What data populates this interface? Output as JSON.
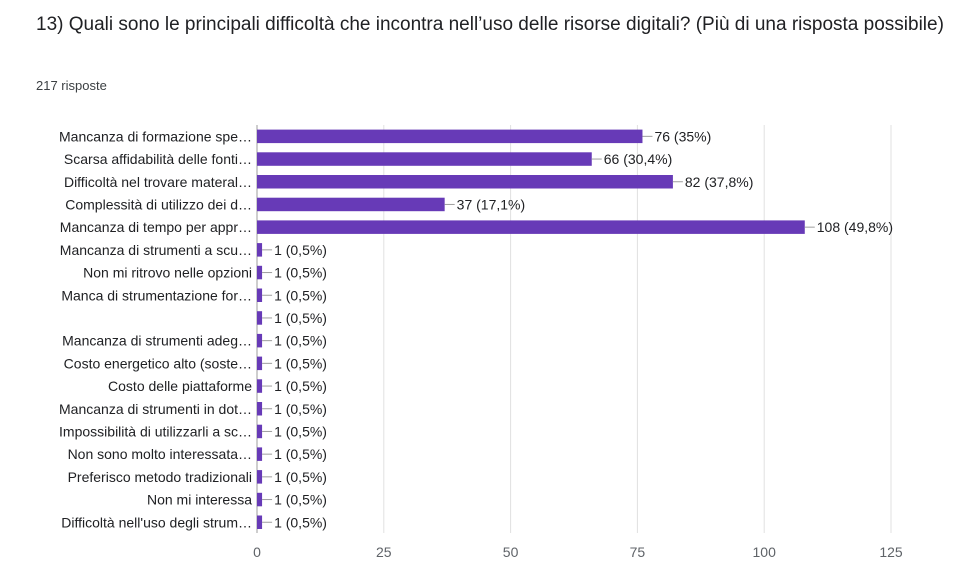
{
  "question": "13) Quali sono le principali difficoltà che incontra nell’uso delle risorse digitali?  (Più di una risposta possibile)",
  "responses": "217 risposte",
  "colors": {
    "bar": "#673ab7",
    "grid": "#e0e0e0",
    "axis": "#9e9e9e",
    "leader": "#9e9e9e"
  },
  "chart_data": {
    "type": "bar",
    "orientation": "horizontal",
    "categories": [
      "Mancanza di formazione spe…",
      "Scarsa affidabilità delle fonti…",
      "Difficoltà nel trovare materal…",
      "Complessità di utilizzo dei d…",
      "Mancanza di tempo per appr…",
      "Mancanza di strumenti a scu…",
      "Non mi ritrovo nelle opzioni",
      "Manca di strumentazione for…",
      "",
      "Mancanza di strumenti adeg…",
      "Costo energetico alto (soste…",
      "Costo delle piattaforme",
      "Mancanza di strumenti in dot…",
      "Impossibilità di utilizzarli a sc…",
      "Non sono molto interessata…",
      "Preferisco metodo tradizionali",
      "Non mi interessa",
      "Difficoltà nell'uso degli strum…"
    ],
    "values": [
      76,
      66,
      82,
      37,
      108,
      1,
      1,
      1,
      1,
      1,
      1,
      1,
      1,
      1,
      1,
      1,
      1,
      1
    ],
    "value_labels": [
      "76 (35%)",
      "66 (30,4%)",
      "82 (37,8%)",
      "37 (17,1%)",
      "108 (49,8%)",
      "1 (0,5%)",
      "1 (0,5%)",
      "1 (0,5%)",
      "1 (0,5%)",
      "1 (0,5%)",
      "1 (0,5%)",
      "1 (0,5%)",
      "1 (0,5%)",
      "1 (0,5%)",
      "1 (0,5%)",
      "1 (0,5%)",
      "1 (0,5%)",
      "1 (0,5%)"
    ],
    "xlim": [
      0,
      125
    ],
    "xticks": [
      0,
      25,
      50,
      75,
      100,
      125
    ],
    "grid": true
  }
}
